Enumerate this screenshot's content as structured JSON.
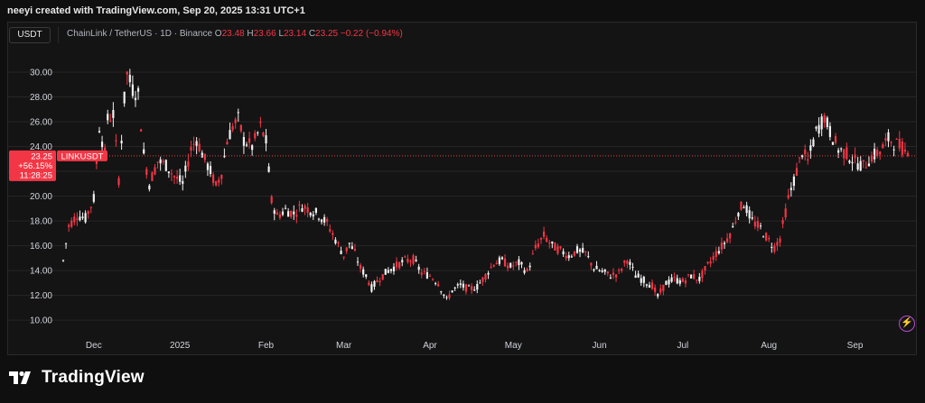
{
  "header": {
    "credit": "neeyi created with TradingView.com, Sep 20, 2025 13:31 UTC+1"
  },
  "toolbar": {
    "symbol_button": "USDT",
    "pair": "ChainLink / TetherUS · 1D · Binance",
    "open_label": "O",
    "open": "23.48",
    "high_label": "H",
    "high": "23.66",
    "low_label": "L",
    "low": "23.14",
    "close_label": "C",
    "close": "23.25",
    "change": "−0.22 (−0.94%)"
  },
  "price_tag": {
    "price": "23.25",
    "change_pct": "+56.15%",
    "countdown": "11:28:25",
    "symbol": "LINKUSDT"
  },
  "footer": {
    "brand": "TradingView"
  },
  "colors": {
    "up": "#f2f2f2",
    "down": "#f23645",
    "last_price_line": "#f23645",
    "grid": "#262626"
  },
  "chart_data": {
    "type": "candlestick",
    "title": "ChainLink / TetherUS · 1D · Binance",
    "y_axis_ticks": [
      "10.00",
      "12.00",
      "14.00",
      "16.00",
      "18.00",
      "20.00",
      "22.00",
      "24.00",
      "26.00",
      "28.00",
      "30.00"
    ],
    "y_tick_values": [
      10,
      12,
      14,
      16,
      18,
      20,
      22,
      24,
      26,
      28,
      30
    ],
    "ylim": [
      8.7,
      31.6
    ],
    "x_axis_labels": [
      "Dec",
      "2025",
      "Feb",
      "Mar",
      "Apr",
      "May",
      "Jun",
      "Jul",
      "Aug",
      "Sep"
    ],
    "x_label_dates": [
      "2024-12-01",
      "2025-01-01",
      "2025-02-01",
      "2025-03-01",
      "2025-04-01",
      "2025-05-01",
      "2025-06-01",
      "2025-07-01",
      "2025-08-01",
      "2025-09-01"
    ],
    "x_range": [
      "2024-11-20",
      "2025-09-20"
    ],
    "last_price": 23.25,
    "series": [
      {
        "values": [
          [
            "2024-11-20",
            14.8
          ],
          [
            "2024-11-22",
            17.6
          ],
          [
            "2024-11-25",
            18.5
          ],
          [
            "2024-11-28",
            18.2
          ],
          [
            "2024-12-01",
            19.8
          ],
          [
            "2024-12-03",
            25.6
          ],
          [
            "2024-12-05",
            23.4
          ],
          [
            "2024-12-06",
            26.2
          ],
          [
            "2024-12-08",
            26.6
          ],
          [
            "2024-12-10",
            21.4
          ],
          [
            "2024-12-12",
            27.8
          ],
          [
            "2024-12-13",
            29.9
          ],
          [
            "2024-12-15",
            28.6
          ],
          [
            "2024-12-17",
            28.2
          ],
          [
            "2024-12-19",
            23.4
          ],
          [
            "2024-12-21",
            21.0
          ],
          [
            "2024-12-24",
            22.8
          ],
          [
            "2024-12-27",
            22.5
          ],
          [
            "2024-12-30",
            21.6
          ],
          [
            "2025-01-02",
            21.0
          ],
          [
            "2025-01-05",
            23.8
          ],
          [
            "2025-01-07",
            24.6
          ],
          [
            "2025-01-10",
            22.9
          ],
          [
            "2025-01-12",
            22.0
          ],
          [
            "2025-01-14",
            20.8
          ],
          [
            "2025-01-16",
            21.9
          ],
          [
            "2025-01-18",
            24.5
          ],
          [
            "2025-01-20",
            25.6
          ],
          [
            "2025-01-22",
            26.2
          ],
          [
            "2025-01-24",
            24.5
          ],
          [
            "2025-01-27",
            24.0
          ],
          [
            "2025-01-30",
            25.6
          ],
          [
            "2025-02-01",
            24.4
          ],
          [
            "2025-02-03",
            19.6
          ],
          [
            "2025-02-05",
            18.4
          ],
          [
            "2025-02-08",
            18.9
          ],
          [
            "2025-02-11",
            18.6
          ],
          [
            "2025-02-14",
            19.2
          ],
          [
            "2025-02-17",
            18.9
          ],
          [
            "2025-02-20",
            18.5
          ],
          [
            "2025-02-23",
            17.8
          ],
          [
            "2025-02-26",
            16.5
          ],
          [
            "2025-03-01",
            15.2
          ],
          [
            "2025-03-03",
            16.2
          ],
          [
            "2025-03-05",
            15.4
          ],
          [
            "2025-03-07",
            14.2
          ],
          [
            "2025-03-09",
            13.6
          ],
          [
            "2025-03-11",
            12.6
          ],
          [
            "2025-03-14",
            13.4
          ],
          [
            "2025-03-17",
            14.0
          ],
          [
            "2025-03-20",
            14.4
          ],
          [
            "2025-03-23",
            14.8
          ],
          [
            "2025-03-26",
            14.9
          ],
          [
            "2025-03-29",
            13.8
          ],
          [
            "2025-04-01",
            13.6
          ],
          [
            "2025-04-04",
            13.0
          ],
          [
            "2025-04-07",
            11.6
          ],
          [
            "2025-04-09",
            12.4
          ],
          [
            "2025-04-12",
            12.8
          ],
          [
            "2025-04-15",
            12.5
          ],
          [
            "2025-04-18",
            12.7
          ],
          [
            "2025-04-21",
            13.6
          ],
          [
            "2025-04-24",
            14.6
          ],
          [
            "2025-04-27",
            14.8
          ],
          [
            "2025-04-30",
            14.3
          ],
          [
            "2025-05-03",
            14.6
          ],
          [
            "2025-05-06",
            13.9
          ],
          [
            "2025-05-09",
            15.8
          ],
          [
            "2025-05-12",
            16.8
          ],
          [
            "2025-05-15",
            16.0
          ],
          [
            "2025-05-18",
            15.6
          ],
          [
            "2025-05-21",
            15.2
          ],
          [
            "2025-05-24",
            15.6
          ],
          [
            "2025-05-27",
            15.4
          ],
          [
            "2025-05-30",
            14.2
          ],
          [
            "2025-06-02",
            13.9
          ],
          [
            "2025-06-05",
            13.6
          ],
          [
            "2025-06-08",
            13.8
          ],
          [
            "2025-06-11",
            14.9
          ],
          [
            "2025-06-14",
            13.6
          ],
          [
            "2025-06-17",
            13.2
          ],
          [
            "2025-06-20",
            12.8
          ],
          [
            "2025-06-22",
            11.9
          ],
          [
            "2025-06-25",
            13.0
          ],
          [
            "2025-06-28",
            13.3
          ],
          [
            "2025-07-01",
            13.1
          ],
          [
            "2025-07-04",
            13.6
          ],
          [
            "2025-07-07",
            13.3
          ],
          [
            "2025-07-10",
            14.4
          ],
          [
            "2025-07-13",
            15.4
          ],
          [
            "2025-07-16",
            16.2
          ],
          [
            "2025-07-19",
            17.4
          ],
          [
            "2025-07-21",
            18.8
          ],
          [
            "2025-07-23",
            19.4
          ],
          [
            "2025-07-26",
            18.0
          ],
          [
            "2025-07-29",
            17.4
          ],
          [
            "2025-08-01",
            16.4
          ],
          [
            "2025-08-03",
            15.9
          ],
          [
            "2025-08-05",
            16.6
          ],
          [
            "2025-08-08",
            19.8
          ],
          [
            "2025-08-11",
            22.0
          ],
          [
            "2025-08-13",
            23.6
          ],
          [
            "2025-08-15",
            22.8
          ],
          [
            "2025-08-18",
            25.2
          ],
          [
            "2025-08-21",
            26.4
          ],
          [
            "2025-08-23",
            25.2
          ],
          [
            "2025-08-26",
            23.8
          ],
          [
            "2025-08-29",
            23.4
          ],
          [
            "2025-09-01",
            22.8
          ],
          [
            "2025-09-04",
            22.4
          ],
          [
            "2025-09-07",
            23.2
          ],
          [
            "2025-09-10",
            23.6
          ],
          [
            "2025-09-13",
            24.6
          ],
          [
            "2025-09-16",
            24.2
          ],
          [
            "2025-09-18",
            23.9
          ],
          [
            "2025-09-20",
            23.25
          ]
        ]
      }
    ]
  }
}
